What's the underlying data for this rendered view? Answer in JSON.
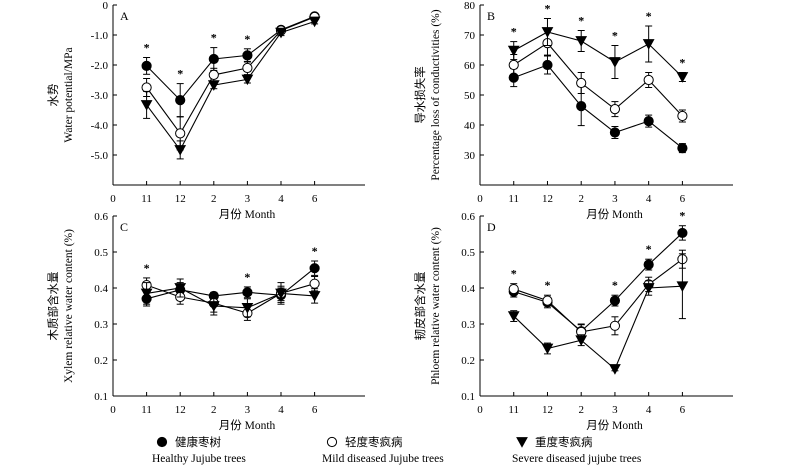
{
  "x_axis_title": "月份 Month",
  "legend": [
    {
      "cn": "健康枣树",
      "en": "Healthy Jujube trees",
      "marker": "filled-circle"
    },
    {
      "cn": "轻度枣疯病",
      "en": "Mild diseased Jujube trees",
      "marker": "open-circle"
    },
    {
      "cn": "重度枣疯病",
      "en": "Severe diseased jujube trees",
      "marker": "filled-triangle-down"
    }
  ],
  "chart_data": [
    {
      "type": "line",
      "panel": "A",
      "ylabel_cn": "水势",
      "ylabel_en": "Water potential/MPa",
      "categories": [
        "11",
        "12",
        "2",
        "3",
        "4",
        "6"
      ],
      "ylim": [
        -6.0,
        0.0
      ],
      "yticks": [
        "0",
        "-1.0",
        "-2.0",
        "-3.0",
        "-4.0",
        "-5.0"
      ],
      "ytick_values": [
        0,
        -1,
        -2,
        -3,
        -4,
        -5
      ],
      "series": [
        {
          "name": "Healthy Jujube trees",
          "marker": "filled-circle",
          "values": [
            -2.03,
            -3.17,
            -1.8,
            -1.68,
            -0.83,
            -0.38
          ],
          "err": [
            0.28,
            0.55,
            0.38,
            0.22,
            0.1,
            0.08
          ]
        },
        {
          "name": "Mild diseased Jujube trees",
          "marker": "open-circle",
          "values": [
            -2.75,
            -4.28,
            -2.33,
            -2.1,
            -0.85,
            -0.4
          ],
          "err": [
            0.3,
            0.55,
            0.22,
            0.22,
            0.1,
            0.08
          ]
        },
        {
          "name": "Severe diseased jujube trees",
          "marker": "filled-triangle-down",
          "values": [
            -3.33,
            -4.83,
            -2.67,
            -2.48,
            -0.92,
            -0.55
          ],
          "err": [
            0.45,
            0.3,
            0.12,
            0.12,
            0.1,
            0.08
          ]
        }
      ],
      "significance": [
        "*",
        "*",
        "*",
        "*",
        "",
        ""
      ]
    },
    {
      "type": "line",
      "panel": "B",
      "ylabel_cn": "导水损失率",
      "ylabel_en": "Percentage loss of conductivities (%)",
      "categories": [
        "11",
        "12",
        "2",
        "3",
        "4",
        "6"
      ],
      "ylim": [
        20,
        80
      ],
      "yticks": [
        "80",
        "70",
        "60",
        "50",
        "40",
        "30"
      ],
      "ytick_values": [
        80,
        70,
        60,
        50,
        40,
        30
      ],
      "series": [
        {
          "name": "Healthy Jujube trees",
          "marker": "filled-circle",
          "values": [
            55.8,
            60.0,
            46.3,
            37.5,
            41.3,
            32.3
          ],
          "err": [
            3.0,
            3.0,
            6.5,
            2.0,
            2.0,
            1.5
          ]
        },
        {
          "name": "Mild diseased Jujube trees",
          "marker": "open-circle",
          "values": [
            60.0,
            67.3,
            54.0,
            45.3,
            55.0,
            43.0
          ],
          "err": [
            3.5,
            4.0,
            3.5,
            2.5,
            2.5,
            2.0
          ]
        },
        {
          "name": "Severe diseased jujube trees",
          "marker": "filled-triangle-down",
          "values": [
            64.8,
            71.0,
            68.0,
            61.0,
            67.0,
            56.0
          ],
          "err": [
            3.0,
            4.5,
            3.5,
            5.5,
            6.0,
            1.5
          ]
        }
      ],
      "significance": [
        "*",
        "*",
        "*",
        "*",
        "*",
        "*"
      ]
    },
    {
      "type": "line",
      "panel": "C",
      "ylabel_cn": "木质部含水量",
      "ylabel_en": "Xylem relative water content (%)",
      "categories": [
        "11",
        "12",
        "2",
        "3",
        "4",
        "6"
      ],
      "ylim": [
        0.1,
        0.6
      ],
      "yticks": [
        "0.6",
        "0.5",
        "0.4",
        "0.3",
        "0.2",
        "0.1"
      ],
      "ytick_values": [
        0.6,
        0.5,
        0.4,
        0.3,
        0.2,
        0.1
      ],
      "series": [
        {
          "name": "Healthy Jujube trees",
          "marker": "filled-circle",
          "values": [
            0.37,
            0.395,
            0.378,
            0.388,
            0.38,
            0.455
          ],
          "err": [
            0.02,
            0.02,
            0.01,
            0.015,
            0.02,
            0.02
          ]
        },
        {
          "name": "Mild diseased Jujube trees",
          "marker": "open-circle",
          "values": [
            0.408,
            0.375,
            0.358,
            0.33,
            0.385,
            0.412
          ],
          "err": [
            0.02,
            0.02,
            0.025,
            0.02,
            0.02,
            0.02
          ]
        },
        {
          "name": "Severe diseased jujube trees",
          "marker": "filled-triangle-down",
          "values": [
            0.385,
            0.4,
            0.35,
            0.345,
            0.385,
            0.378
          ],
          "err": [
            0.03,
            0.025,
            0.025,
            0.025,
            0.03,
            0.02
          ]
        }
      ],
      "significance": [
        "*",
        "",
        "",
        "*",
        "",
        "*"
      ]
    },
    {
      "type": "line",
      "panel": "D",
      "ylabel_cn": "韧皮部含水量",
      "ylabel_en": "Phloem relative water content (%)",
      "categories": [
        "11",
        "12",
        "2",
        "3",
        "4",
        "6"
      ],
      "ylim": [
        0.1,
        0.6
      ],
      "yticks": [
        "0.6",
        "0.5",
        "0.4",
        "0.3",
        "0.2",
        "0.1"
      ],
      "ytick_values": [
        0.6,
        0.5,
        0.4,
        0.3,
        0.2,
        0.1
      ],
      "series": [
        {
          "name": "Healthy Jujube trees",
          "marker": "filled-circle",
          "values": [
            0.39,
            0.36,
            0.28,
            0.365,
            0.465,
            0.553
          ],
          "err": [
            0.015,
            0.015,
            0.02,
            0.015,
            0.015,
            0.02
          ]
        },
        {
          "name": "Mild diseased Jujube trees",
          "marker": "open-circle",
          "values": [
            0.397,
            0.365,
            0.278,
            0.295,
            0.41,
            0.48
          ],
          "err": [
            0.015,
            0.015,
            0.02,
            0.025,
            0.02,
            0.025
          ]
        },
        {
          "name": "Severe diseased jujube trees",
          "marker": "filled-triangle-down",
          "values": [
            0.322,
            0.232,
            0.255,
            0.175,
            0.4,
            0.405
          ],
          "err": [
            0.015,
            0.015,
            0.015,
            0.005,
            0.02,
            0.09
          ]
        }
      ],
      "significance": [
        "*",
        "*",
        "",
        "*",
        "*",
        "*"
      ]
    }
  ]
}
